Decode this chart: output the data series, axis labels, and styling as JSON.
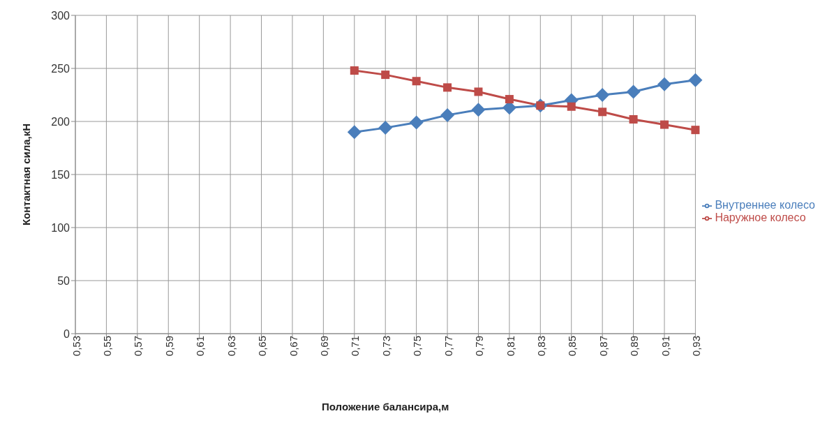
{
  "chart_data": {
    "type": "line",
    "xlabel": "Положение балансира,м",
    "ylabel": "Контактная сила,кН",
    "categories": [
      "0,53",
      "0,55",
      "0,57",
      "0,59",
      "0,61",
      "0,63",
      "0,65",
      "0,67",
      "0,69",
      "0,71",
      "0,73",
      "0,75",
      "0,77",
      "0,79",
      "0,81",
      "0,83",
      "0,85",
      "0,87",
      "0,89",
      "0,91",
      "0,93"
    ],
    "series": [
      {
        "name": "Внутреннее колесо",
        "color": "#4a7ebb",
        "marker": "diamond",
        "values": [
          null,
          null,
          null,
          null,
          null,
          null,
          null,
          null,
          null,
          190,
          194,
          199,
          206,
          211,
          213,
          215,
          220,
          225,
          228,
          235,
          239
        ]
      },
      {
        "name": "Наружное колесо",
        "color": "#be4b48",
        "marker": "square",
        "values": [
          null,
          null,
          null,
          null,
          null,
          null,
          null,
          null,
          null,
          248,
          244,
          238,
          232,
          228,
          221,
          215,
          214,
          209,
          202,
          197,
          192
        ]
      }
    ],
    "ylim": [
      0,
      300
    ],
    "yticks": [
      0,
      50,
      100,
      150,
      200,
      250,
      300
    ],
    "grid": true,
    "legend": "right",
    "line_style": "solid"
  }
}
